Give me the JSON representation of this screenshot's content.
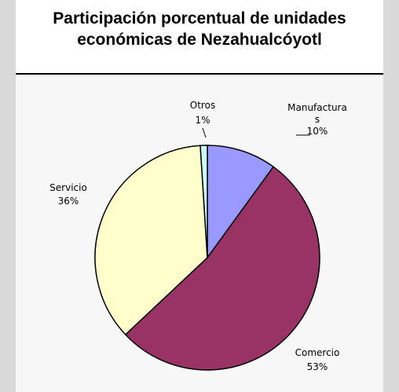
{
  "chart_data": {
    "type": "pie",
    "title_lines": [
      "Participación porcentual de unidades",
      "económicas de Nezahualcóyotl"
    ],
    "slices": [
      {
        "name": "Manufactura",
        "label_lines": [
          "Manufactura",
          "s",
          "10%"
        ],
        "value": 10,
        "color": "#9999ff"
      },
      {
        "name": "Comercio",
        "label_lines": [
          "Comercio",
          "53%"
        ],
        "value": 53,
        "color": "#993366"
      },
      {
        "name": "Servicio",
        "label_lines": [
          "Servicio",
          "36%"
        ],
        "value": 36,
        "color": "#ffffcc"
      },
      {
        "name": "Otros",
        "label_lines": [
          "Otros",
          "1%"
        ],
        "value": 1,
        "color": "#ccffff"
      }
    ]
  }
}
